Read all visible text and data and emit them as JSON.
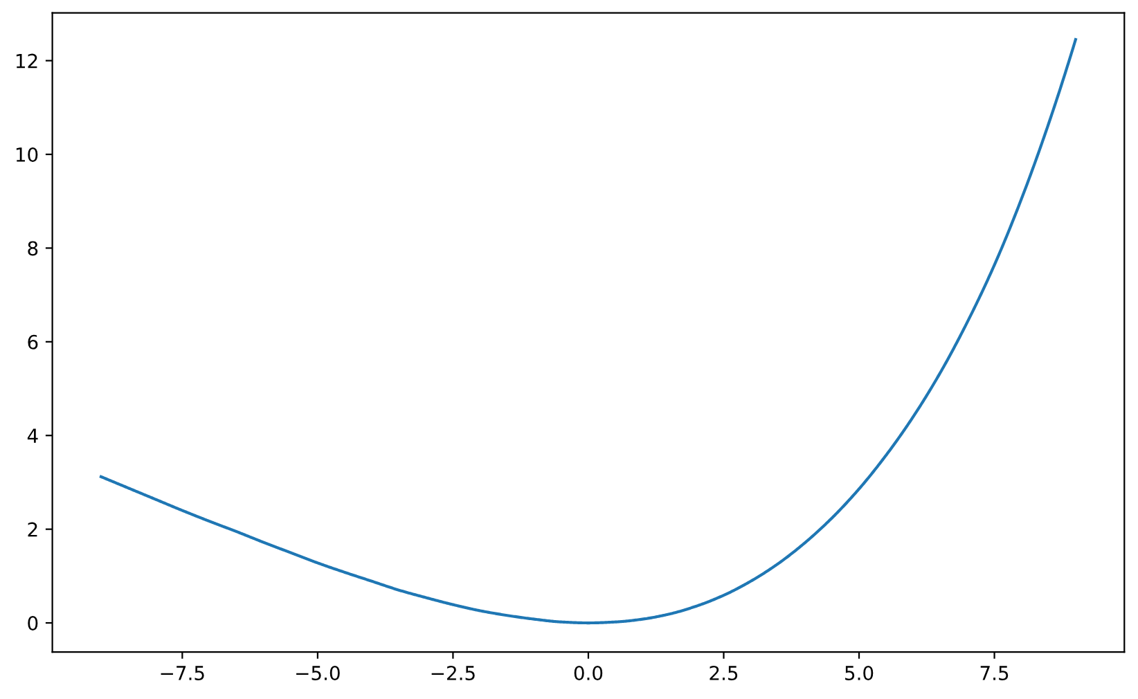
{
  "chart_data": {
    "type": "line",
    "x": [
      -9,
      -8.5,
      -8,
      -7.5,
      -7,
      -6.5,
      -6,
      -5.5,
      -5,
      -4.5,
      -4,
      -3.5,
      -3,
      -2.5,
      -2,
      -1.5,
      -1,
      -0.5,
      0,
      0.5,
      1,
      1.5,
      2,
      2.5,
      3,
      3.5,
      4,
      4.5,
      5,
      5.5,
      6,
      6.5,
      7,
      7.5,
      8,
      8.5,
      9
    ],
    "series": [
      {
        "color": "#1f77b4",
        "values": [
          3.12,
          2.88,
          2.64,
          2.4,
          2.17,
          1.95,
          1.72,
          1.5,
          1.28,
          1.08,
          0.89,
          0.7,
          0.54,
          0.39,
          0.26,
          0.16,
          0.08,
          0.02,
          0,
          0.02,
          0.08,
          0.19,
          0.36,
          0.59,
          0.89,
          1.26,
          1.71,
          2.24,
          2.86,
          3.58,
          4.4,
          5.34,
          6.42,
          7.64,
          9.05,
          10.65,
          12.45
        ]
      }
    ],
    "xlim": [
      -9.9,
      9.9
    ],
    "ylim": [
      -0.62,
      13.02
    ],
    "xticks": [
      {
        "value": -7.5,
        "label": "−7.5"
      },
      {
        "value": -5,
        "label": "−5.0"
      },
      {
        "value": -2.5,
        "label": "−2.5"
      },
      {
        "value": 0,
        "label": "0.0"
      },
      {
        "value": 2.5,
        "label": "2.5"
      },
      {
        "value": 5,
        "label": "5.0"
      },
      {
        "value": 7.5,
        "label": "7.5"
      }
    ],
    "yticks": [
      0,
      2,
      4,
      6,
      8,
      10,
      12
    ],
    "line_style": "solid"
  }
}
